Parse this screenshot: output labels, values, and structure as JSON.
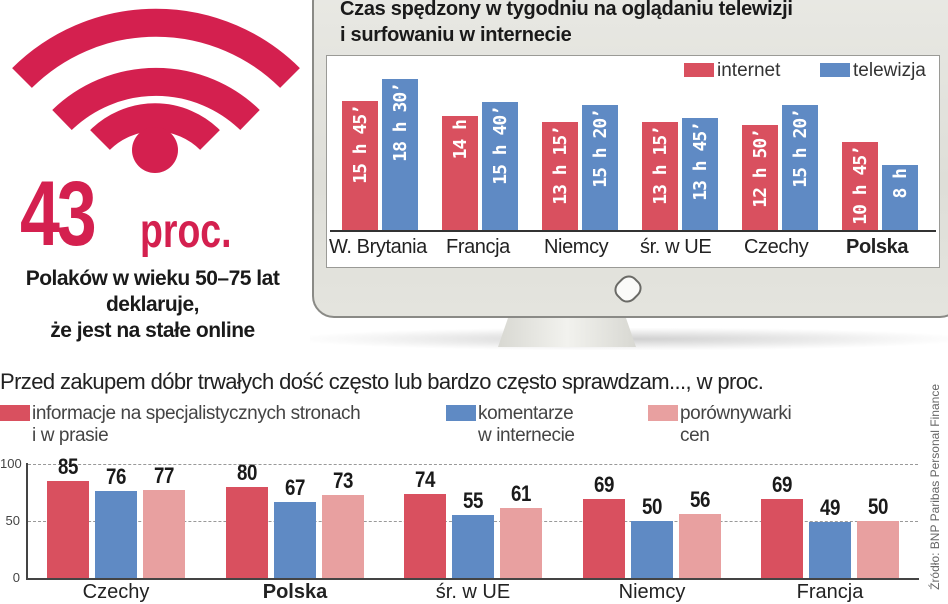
{
  "wifi_stat": {
    "icon": "wifi-icon",
    "value": "43",
    "unit": "proc.",
    "caption_lines": [
      "Polaków w wieku 50–75 lat",
      "deklaruje,",
      "że jest na stałe online"
    ],
    "color": "#d4204f"
  },
  "colors": {
    "internet": "#d9505f",
    "telewizja": "#5f8ac4",
    "info": "#d9505f",
    "komentarze": "#5f8ac4",
    "porownywarki": "#e8a0a0"
  },
  "chart_data": [
    {
      "type": "bar",
      "title": "Czas spędzony w tygodniu na oglądaniu telewizji i surfowaniu w internecie",
      "title_lines": [
        "Czas spędzony w tygodniu na oglądaniu telewizji",
        "i surfowaniu w internecie"
      ],
      "categories": [
        "W. Brytania",
        "Francja",
        "Niemcy",
        "śr. w UE",
        "Czechy",
        "Polska"
      ],
      "series": [
        {
          "name": "internet",
          "values_hours": [
            15.75,
            14,
            13.25,
            13.25,
            12.833,
            10.75
          ],
          "labels": [
            "15 h 45’",
            "14 h",
            "13 h 15’",
            "13 h 15’",
            "12 h 50’",
            "10 h 45’"
          ]
        },
        {
          "name": "telewizja",
          "values_hours": [
            18.5,
            15.667,
            15.333,
            13.75,
            15.333,
            8
          ],
          "labels": [
            "18 h 30’",
            "15 h 40’",
            "15 h 20’",
            "13 h 45’",
            "15 h 20’",
            "8 h"
          ]
        }
      ],
      "legend": [
        "internet",
        "telewizja"
      ],
      "legend_position": "top-right",
      "xlabel": "",
      "ylabel": "",
      "grid": false
    },
    {
      "type": "bar",
      "title": "Przed zakupem dóbr trwałych dość często lub bardzo często sprawdzam..., w proc.",
      "categories": [
        "Czechy",
        "Polska",
        "śr. w UE",
        "Niemcy",
        "Francja"
      ],
      "series": [
        {
          "name": "informacje na specjalistycznych stronach i w prasie",
          "values": [
            85,
            80,
            74,
            69,
            69
          ]
        },
        {
          "name": "komentarze w internecie",
          "values": [
            76,
            67,
            55,
            50,
            49
          ]
        },
        {
          "name": "porównywarki cen",
          "values": [
            77,
            73,
            61,
            56,
            50
          ]
        }
      ],
      "legend": [
        {
          "lines": [
            "informacje na specjalistycznych stronach",
            "i w prasie"
          ]
        },
        {
          "lines": [
            "komentarze",
            "w internecie"
          ]
        },
        {
          "lines": [
            "porównywarki",
            "cen"
          ]
        }
      ],
      "yticks": [
        "0",
        "50",
        "100"
      ],
      "ylim": [
        0,
        100
      ],
      "grid": true,
      "source": "Źródło: BNP Paribas Personal Finance"
    }
  ]
}
